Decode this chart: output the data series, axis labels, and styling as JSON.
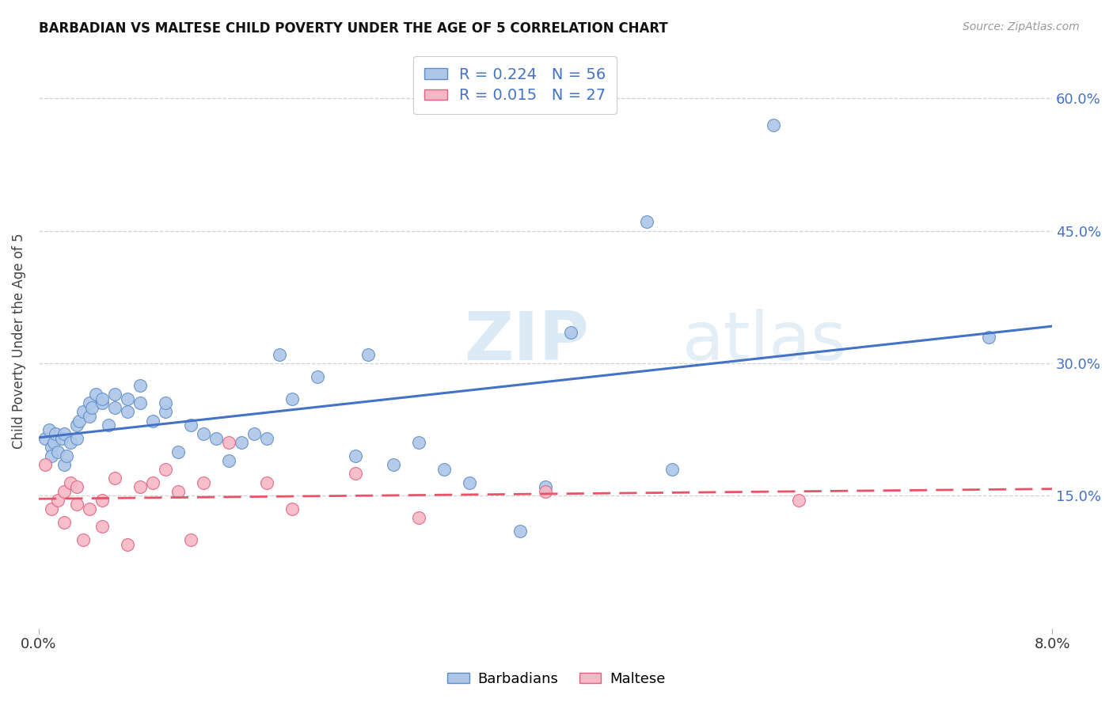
{
  "title": "BARBADIAN VS MALTESE CHILD POVERTY UNDER THE AGE OF 5 CORRELATION CHART",
  "source": "Source: ZipAtlas.com",
  "ylabel_label": "Child Poverty Under the Age of 5",
  "watermark_zip": "ZIP",
  "watermark_atlas": "atlas",
  "legend_label1": "Barbadians",
  "legend_label2": "Maltese",
  "barbadian_R": "0.224",
  "barbadian_N": "56",
  "maltese_R": "0.015",
  "maltese_N": "27",
  "color_barbadian_fill": "#AEC6E8",
  "color_barbadian_edge": "#5B8DC8",
  "color_maltese_fill": "#F5B8C4",
  "color_maltese_edge": "#E06080",
  "color_line_barbadian": "#4472C4",
  "color_line_maltese": "#E8536A",
  "color_right_ticks": "#4472C4",
  "color_legend_text": "#4472C4",
  "background_color": "#FFFFFF",
  "grid_color": "#D0D0D0",
  "barbadian_x": [
    0.0005,
    0.0008,
    0.001,
    0.001,
    0.0012,
    0.0013,
    0.0015,
    0.0018,
    0.002,
    0.002,
    0.0022,
    0.0025,
    0.003,
    0.003,
    0.0032,
    0.0035,
    0.004,
    0.004,
    0.0042,
    0.0045,
    0.005,
    0.005,
    0.0055,
    0.006,
    0.006,
    0.007,
    0.007,
    0.008,
    0.008,
    0.009,
    0.01,
    0.01,
    0.011,
    0.012,
    0.013,
    0.014,
    0.015,
    0.016,
    0.017,
    0.018,
    0.019,
    0.02,
    0.022,
    0.025,
    0.026,
    0.028,
    0.03,
    0.032,
    0.034,
    0.038,
    0.04,
    0.042,
    0.048,
    0.05,
    0.058,
    0.075
  ],
  "barbadian_y": [
    0.215,
    0.225,
    0.205,
    0.195,
    0.21,
    0.22,
    0.2,
    0.215,
    0.185,
    0.22,
    0.195,
    0.21,
    0.23,
    0.215,
    0.235,
    0.245,
    0.24,
    0.255,
    0.25,
    0.265,
    0.255,
    0.26,
    0.23,
    0.25,
    0.265,
    0.26,
    0.245,
    0.275,
    0.255,
    0.235,
    0.245,
    0.255,
    0.2,
    0.23,
    0.22,
    0.215,
    0.19,
    0.21,
    0.22,
    0.215,
    0.31,
    0.26,
    0.285,
    0.195,
    0.31,
    0.185,
    0.21,
    0.18,
    0.165,
    0.11,
    0.16,
    0.335,
    0.46,
    0.18,
    0.57,
    0.33
  ],
  "maltese_x": [
    0.0005,
    0.001,
    0.0015,
    0.002,
    0.002,
    0.0025,
    0.003,
    0.003,
    0.0035,
    0.004,
    0.005,
    0.005,
    0.006,
    0.007,
    0.008,
    0.009,
    0.01,
    0.011,
    0.012,
    0.013,
    0.015,
    0.018,
    0.02,
    0.025,
    0.03,
    0.04,
    0.06
  ],
  "maltese_y": [
    0.185,
    0.135,
    0.145,
    0.12,
    0.155,
    0.165,
    0.14,
    0.16,
    0.1,
    0.135,
    0.115,
    0.145,
    0.17,
    0.095,
    0.16,
    0.165,
    0.18,
    0.155,
    0.1,
    0.165,
    0.21,
    0.165,
    0.135,
    0.175,
    0.125,
    0.155,
    0.145
  ],
  "xlim": [
    0.0,
    0.08
  ],
  "ylim": [
    0.0,
    0.65
  ],
  "ytick_positions": [
    0.15,
    0.3,
    0.45,
    0.6
  ],
  "ytick_labels": [
    "15.0%",
    "30.0%",
    "45.0%",
    "60.0%"
  ],
  "xtick_positions": [
    0.0,
    0.08
  ],
  "xtick_labels": [
    "0.0%",
    "8.0%"
  ]
}
